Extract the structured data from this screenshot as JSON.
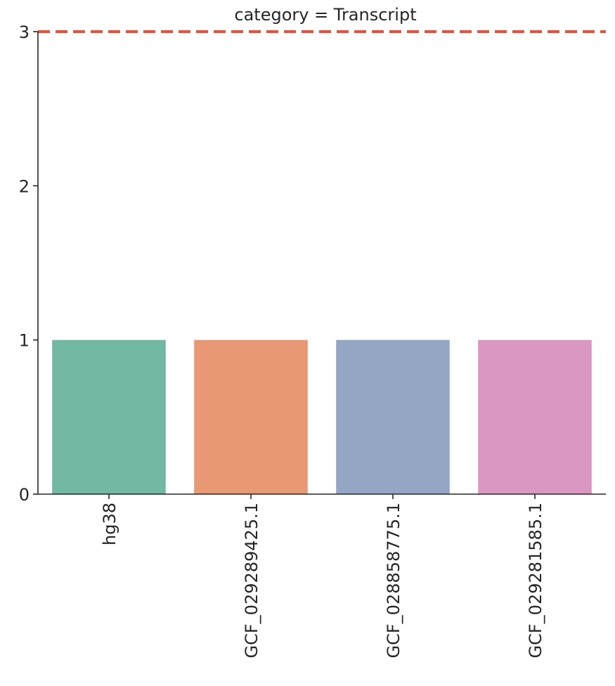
{
  "chart_data": {
    "type": "bar",
    "title": "category = Transcript",
    "categories": [
      "hg38",
      "GCF_029289425.1",
      "GCF_028858775.1",
      "GCF_029281585.1"
    ],
    "values": [
      1,
      1,
      1,
      1
    ],
    "bar_colors": [
      "#72b8a3",
      "#e89874",
      "#95a6c5",
      "#da97c2"
    ],
    "ylim": [
      0,
      3
    ],
    "yticks": [
      0,
      1,
      2,
      3
    ],
    "reference_line": {
      "y": 3,
      "style": "dashed",
      "color": "#e8503a"
    },
    "grid": false,
    "legend": "none"
  }
}
